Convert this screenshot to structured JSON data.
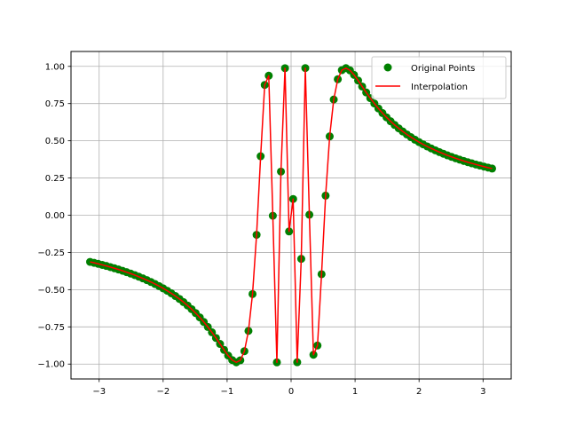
{
  "chart_data": {
    "type": "line",
    "title": "",
    "xlabel": "",
    "ylabel": "",
    "xlim": [
      -3.44,
      3.44
    ],
    "ylim": [
      -1.1,
      1.1
    ],
    "xticks": [
      -3,
      -2,
      -1,
      0,
      1,
      2,
      3
    ],
    "xtick_labels": [
      "−3",
      "−2",
      "−1",
      "0",
      "1",
      "2",
      "3"
    ],
    "yticks": [
      -1.0,
      -0.75,
      -0.5,
      -0.25,
      0.0,
      0.25,
      0.5,
      0.75,
      1.0
    ],
    "ytick_labels": [
      "−1.00",
      "−0.75",
      "−0.50",
      "−0.25",
      "0.00",
      "0.25",
      "0.50",
      "0.75",
      "1.00"
    ],
    "grid": true,
    "legend_position": "top-right",
    "series": [
      {
        "name": "Original Points",
        "style": "markers",
        "color": "#008000",
        "x": [
          -3.1416,
          -3.0781,
          -3.0147,
          -2.9512,
          -2.8877,
          -2.8243,
          -2.7608,
          -2.6973,
          -2.6339,
          -2.5704,
          -2.5069,
          -2.4435,
          -2.38,
          -2.3165,
          -2.2531,
          -2.1896,
          -2.1261,
          -2.0627,
          -1.9992,
          -1.9357,
          -1.8723,
          -1.8088,
          -1.7453,
          -1.6819,
          -1.6184,
          -1.5549,
          -1.4915,
          -1.428,
          -1.3645,
          -1.3011,
          -1.2376,
          -1.1741,
          -1.1107,
          -1.0472,
          -0.9837,
          -0.9203,
          -0.8568,
          -0.7933,
          -0.7299,
          -0.6664,
          -0.6029,
          -0.5395,
          -0.476,
          -0.4125,
          -0.3491,
          -0.2856,
          -0.2221,
          -0.1587,
          -0.0952,
          -0.0317,
          0.0317,
          0.0952,
          0.1587,
          0.2221,
          0.2856,
          0.3491,
          0.4125,
          0.476,
          0.5395,
          0.6029,
          0.6664,
          0.7299,
          0.7933,
          0.8568,
          0.9203,
          0.9837,
          1.0472,
          1.1107,
          1.1741,
          1.2376,
          1.3011,
          1.3645,
          1.428,
          1.4915,
          1.5549,
          1.6184,
          1.6819,
          1.7453,
          1.8088,
          1.8723,
          1.9357,
          1.9992,
          2.0627,
          2.1261,
          2.1896,
          2.2531,
          2.3165,
          2.38,
          2.4435,
          2.5069,
          2.5704,
          2.6339,
          2.6973,
          2.7608,
          2.8243,
          2.8877,
          2.9512,
          3.0147,
          3.0781,
          3.1416
        ],
        "y": [
          -0.3135,
          -0.3199,
          -0.3266,
          -0.3335,
          -0.3408,
          -0.3484,
          -0.3563,
          -0.3646,
          -0.3734,
          -0.3825,
          -0.3921,
          -0.4023,
          -0.413,
          -0.4242,
          -0.4361,
          -0.4487,
          -0.4621,
          -0.4763,
          -0.4913,
          -0.5074,
          -0.5246,
          -0.5429,
          -0.5626,
          -0.5837,
          -0.6065,
          -0.631,
          -0.6575,
          -0.6862,
          -0.7172,
          -0.7506,
          -0.7866,
          -0.8248,
          -0.8648,
          -0.9051,
          -0.9428,
          -0.9731,
          -0.9882,
          -0.9747,
          -0.9135,
          -0.7773,
          -0.5297,
          -0.1317,
          0.3961,
          0.8752,
          0.9375,
          -0.0034,
          -0.9885,
          0.2932,
          0.9877,
          -0.1089,
          0.1089,
          -0.9877,
          -0.2932,
          0.9885,
          0.0034,
          -0.9375,
          -0.8752,
          -0.3961,
          0.1317,
          0.5297,
          0.7773,
          0.9135,
          0.9747,
          0.9882,
          0.9731,
          0.9428,
          0.9051,
          0.8648,
          0.8248,
          0.7866,
          0.7506,
          0.7172,
          0.6862,
          0.6575,
          0.631,
          0.6065,
          0.5837,
          0.5626,
          0.5429,
          0.5246,
          0.5074,
          0.4913,
          0.4763,
          0.4621,
          0.4487,
          0.4361,
          0.4242,
          0.413,
          0.4023,
          0.3921,
          0.3825,
          0.3734,
          0.3646,
          0.3563,
          0.3484,
          0.3408,
          0.3335,
          0.3266,
          0.3199,
          0.3135
        ]
      },
      {
        "name": "Interpolation",
        "style": "line",
        "color": "#ff0000",
        "same_points_as": "Original Points"
      }
    ]
  }
}
